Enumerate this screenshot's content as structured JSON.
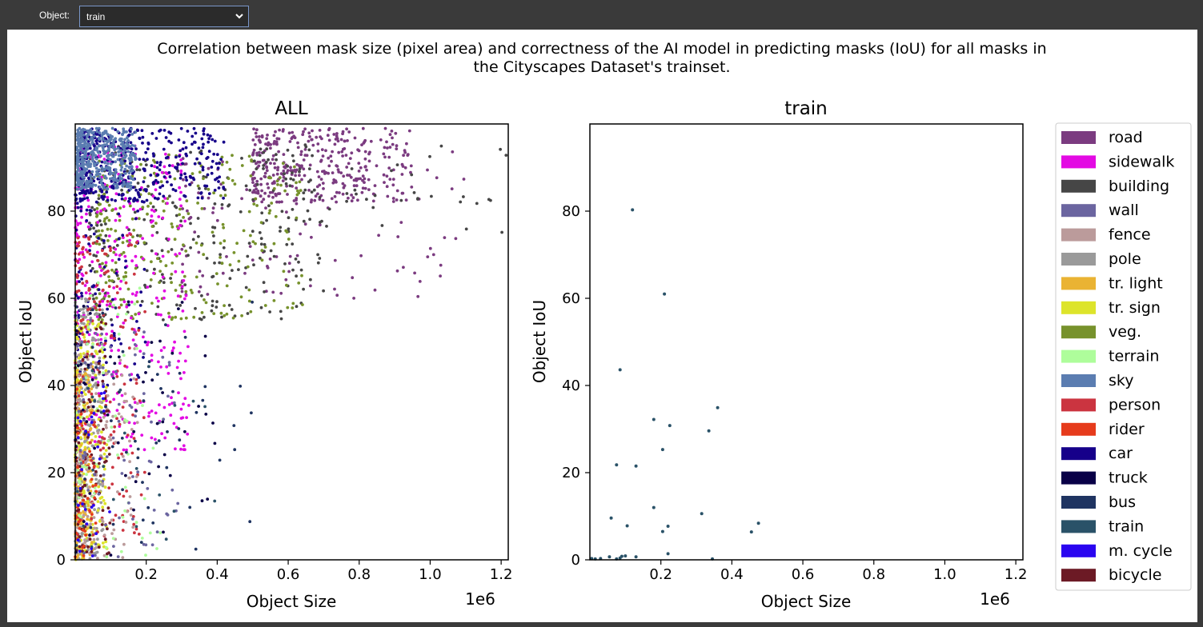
{
  "toolbar": {
    "object_label": "Object:",
    "object_selected": "train"
  },
  "figure": {
    "suptitle_line1": "Correlation between mask size (pixel area) and correctness of the AI model in predicting masks (IoU) for all masks in",
    "suptitle_line2": "the Cityscapes Dataset's trainset."
  },
  "chart_data": [
    {
      "type": "scatter",
      "title": "ALL",
      "xlabel": "Object Size",
      "ylabel": "Object IoU",
      "x_offset_label": "1e6",
      "xlim": [
        0,
        1220000
      ],
      "ylim": [
        0,
        100
      ],
      "xticks": [
        0.2,
        0.4,
        0.6,
        0.8,
        1.0,
        1.2
      ],
      "yticks": [
        0,
        20,
        40,
        60,
        80
      ],
      "grid": false,
      "clusters": [
        {
          "name": "road",
          "xr": [
            500000,
            950000
          ],
          "yr": [
            82,
            99
          ],
          "n": 340
        },
        {
          "name": "road",
          "xr": [
            300000,
            1100000
          ],
          "yr": [
            60,
            95
          ],
          "n": 120
        },
        {
          "name": "building",
          "xr": [
            40000,
            700000
          ],
          "yr": [
            55,
            95
          ],
          "n": 260
        },
        {
          "name": "building",
          "xr": [
            500000,
            1220000
          ],
          "yr": [
            75,
            97
          ],
          "n": 60
        },
        {
          "name": "veg.",
          "xr": [
            60000,
            650000
          ],
          "yr": [
            55,
            93
          ],
          "n": 300
        },
        {
          "name": "sidewalk",
          "xr": [
            0,
            320000
          ],
          "yr": [
            25,
            95
          ],
          "n": 380
        },
        {
          "name": "car",
          "xr": [
            10000,
            420000
          ],
          "yr": [
            82,
            99
          ],
          "n": 380
        },
        {
          "name": "car",
          "xr": [
            0,
            200000
          ],
          "yr": [
            40,
            90
          ],
          "n": 120
        },
        {
          "name": "sky",
          "xr": [
            5000,
            170000
          ],
          "yr": [
            85,
            99
          ],
          "n": 420
        },
        {
          "name": "pole",
          "xr": [
            0,
            80000
          ],
          "yr": [
            0,
            60
          ],
          "n": 280
        },
        {
          "name": "tr. sign",
          "xr": [
            0,
            90000
          ],
          "yr": [
            0,
            55
          ],
          "n": 220
        },
        {
          "name": "tr. light",
          "xr": [
            0,
            50000
          ],
          "yr": [
            0,
            45
          ],
          "n": 140
        },
        {
          "name": "person",
          "xr": [
            0,
            200000
          ],
          "yr": [
            5,
            75
          ],
          "n": 200
        },
        {
          "name": "fence",
          "xr": [
            0,
            180000
          ],
          "yr": [
            0,
            50
          ],
          "n": 140
        },
        {
          "name": "terrain",
          "xr": [
            0,
            250000
          ],
          "yr": [
            0,
            65
          ],
          "n": 80
        },
        {
          "name": "bicycle",
          "xr": [
            0,
            100000
          ],
          "yr": [
            0,
            55
          ],
          "n": 100
        },
        {
          "name": "rider",
          "xr": [
            0,
            60000
          ],
          "yr": [
            0,
            40
          ],
          "n": 50
        },
        {
          "name": "wall",
          "xr": [
            0,
            300000
          ],
          "yr": [
            0,
            55
          ],
          "n": 90
        },
        {
          "name": "bus",
          "xr": [
            0,
            500000
          ],
          "yr": [
            0,
            60
          ],
          "n": 60
        },
        {
          "name": "truck",
          "xr": [
            0,
            400000
          ],
          "yr": [
            0,
            60
          ],
          "n": 60
        },
        {
          "name": "train",
          "xr": [
            0,
            400000
          ],
          "yr": [
            0,
            45
          ],
          "n": 25
        },
        {
          "name": "m. cycle",
          "xr": [
            0,
            100000
          ],
          "yr": [
            0,
            40
          ],
          "n": 30
        }
      ]
    },
    {
      "type": "scatter",
      "title": "train",
      "xlabel": "Object Size",
      "ylabel": "Object IoU",
      "x_offset_label": "1e6",
      "xlim": [
        0,
        1220000
      ],
      "ylim": [
        0,
        100
      ],
      "xticks": [
        0.2,
        0.4,
        0.6,
        0.8,
        1.0,
        1.2
      ],
      "yticks": [
        0,
        20,
        40,
        60,
        80
      ],
      "grid": false,
      "series": "train",
      "points": [
        [
          120000,
          80.3
        ],
        [
          210000,
          61.0
        ],
        [
          85000,
          43.6
        ],
        [
          360000,
          34.9
        ],
        [
          180000,
          32.2
        ],
        [
          225000,
          30.8
        ],
        [
          335000,
          29.6
        ],
        [
          205000,
          25.3
        ],
        [
          75000,
          21.8
        ],
        [
          130000,
          21.5
        ],
        [
          180000,
          12.0
        ],
        [
          315000,
          10.6
        ],
        [
          60000,
          9.6
        ],
        [
          475000,
          8.4
        ],
        [
          105000,
          7.8
        ],
        [
          220000,
          7.7
        ],
        [
          205000,
          6.5
        ],
        [
          455000,
          6.4
        ],
        [
          220000,
          1.4
        ],
        [
          130000,
          0.7
        ],
        [
          90000,
          0.8
        ],
        [
          85000,
          0.4
        ],
        [
          100000,
          0.9
        ],
        [
          55000,
          0.7
        ],
        [
          30000,
          0.3
        ],
        [
          15000,
          0.2
        ],
        [
          5000,
          0.3
        ],
        [
          345000,
          0.2
        ],
        [
          75000,
          0.2
        ]
      ]
    }
  ],
  "legend": [
    {
      "label": "road",
      "color": "#7b3b80"
    },
    {
      "label": "sidewalk",
      "color": "#e30ae3"
    },
    {
      "label": "building",
      "color": "#464646"
    },
    {
      "label": "wall",
      "color": "#6b65a0"
    },
    {
      "label": "fence",
      "color": "#bb9b9b"
    },
    {
      "label": "pole",
      "color": "#9a9a9a"
    },
    {
      "label": "tr. light",
      "color": "#eab333"
    },
    {
      "label": "tr. sign",
      "color": "#dde42b"
    },
    {
      "label": "veg.",
      "color": "#77922c"
    },
    {
      "label": "terrain",
      "color": "#aefd9b"
    },
    {
      "label": "sky",
      "color": "#5b7db1"
    },
    {
      "label": "person",
      "color": "#cb3440"
    },
    {
      "label": "rider",
      "color": "#e63b1c"
    },
    {
      "label": "car",
      "color": "#16008a"
    },
    {
      "label": "truck",
      "color": "#090047"
    },
    {
      "label": "bus",
      "color": "#1f3461"
    },
    {
      "label": "train",
      "color": "#2a5268"
    },
    {
      "label": "m. cycle",
      "color": "#2a05f0"
    },
    {
      "label": "bicycle",
      "color": "#6c1a25"
    }
  ]
}
